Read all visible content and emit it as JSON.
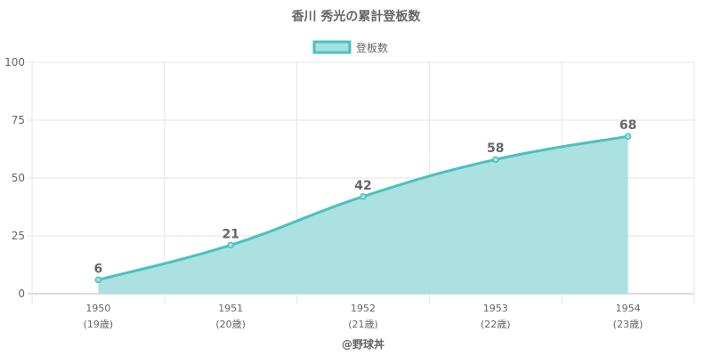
{
  "chart_data": {
    "type": "area",
    "title": "香川 秀光の累計登板数",
    "categories": [
      "1950",
      "1951",
      "1952",
      "1953",
      "1954"
    ],
    "category_sublabels": [
      "(19歳)",
      "(20歳)",
      "(21歳)",
      "(22歳)",
      "(23歳)"
    ],
    "series": [
      {
        "name": "登板数",
        "values": [
          6,
          21,
          42,
          58,
          68
        ]
      }
    ],
    "ylim": [
      0,
      100
    ],
    "yticks": [
      0,
      25,
      50,
      75,
      100
    ],
    "grid": true,
    "legend": "top",
    "data_labels": true,
    "colors": {
      "line": "#4bc0c0",
      "fill": "#a6dfdf",
      "text": "#666666",
      "grid": "#e6e6e6"
    }
  },
  "footer": "@野球丼"
}
